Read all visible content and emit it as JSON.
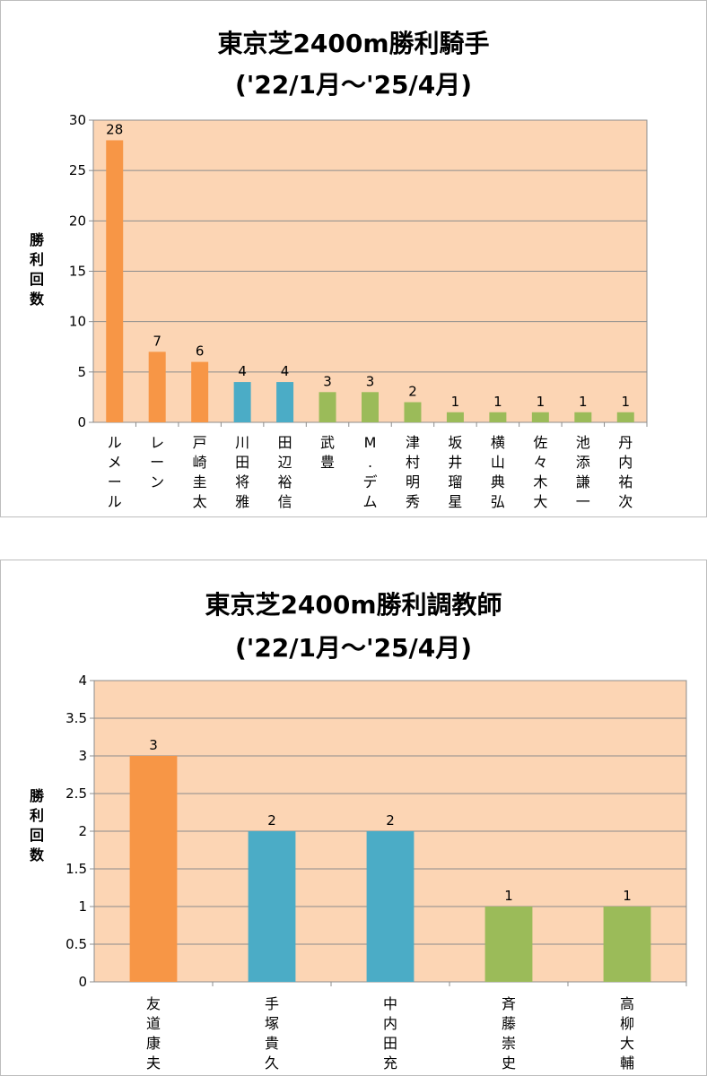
{
  "chart_data": [
    {
      "type": "bar",
      "title": "東京芝2400m勝利騎手",
      "subtitle": "('22/1月～'25/4月)",
      "ylabel": "勝利回数",
      "xlabel": "",
      "ylim": [
        0,
        30
      ],
      "yticks": [
        "0",
        "5",
        "10",
        "15",
        "20",
        "25",
        "30"
      ],
      "grid": true,
      "categories": [
        "ルメール",
        "レーン",
        "戸崎圭太",
        "川田将雅",
        "田辺裕信",
        "武豊",
        "M.デム",
        "津村明秀",
        "坂井瑠星",
        "横山典弘",
        "佐々木大",
        "池添謙一",
        "丹内祐次"
      ],
      "values": [
        28,
        7,
        6,
        4,
        4,
        3,
        3,
        2,
        1,
        1,
        1,
        1,
        1
      ],
      "value_labels": [
        "28",
        "7",
        "6",
        "4",
        "4",
        "3",
        "3",
        "2",
        "1",
        "1",
        "1",
        "1",
        "1"
      ],
      "bar_colors": [
        "#f79646",
        "#f79646",
        "#f79646",
        "#4bacc6",
        "#4bacc6",
        "#9bbb59",
        "#9bbb59",
        "#9bbb59",
        "#9bbb59",
        "#9bbb59",
        "#9bbb59",
        "#9bbb59",
        "#9bbb59"
      ],
      "plot_background": "#fcd5b4"
    },
    {
      "type": "bar",
      "title": "東京芝2400m勝利調教師",
      "subtitle": "('22/1月～'25/4月)",
      "ylabel": "勝利回数",
      "xlabel": "",
      "ylim": [
        0,
        4
      ],
      "yticks": [
        "0",
        "0.5",
        "1",
        "1.5",
        "2",
        "2.5",
        "3",
        "3.5",
        "4"
      ],
      "grid": true,
      "categories": [
        "友道康夫",
        "手塚貴久",
        "中内田充",
        "斉藤崇史",
        "高柳大輔"
      ],
      "values": [
        3,
        2,
        2,
        1,
        1
      ],
      "value_labels": [
        "3",
        "2",
        "2",
        "1",
        "1"
      ],
      "bar_colors": [
        "#f79646",
        "#4bacc6",
        "#4bacc6",
        "#9bbb59",
        "#9bbb59"
      ],
      "plot_background": "#fcd5b4"
    }
  ]
}
